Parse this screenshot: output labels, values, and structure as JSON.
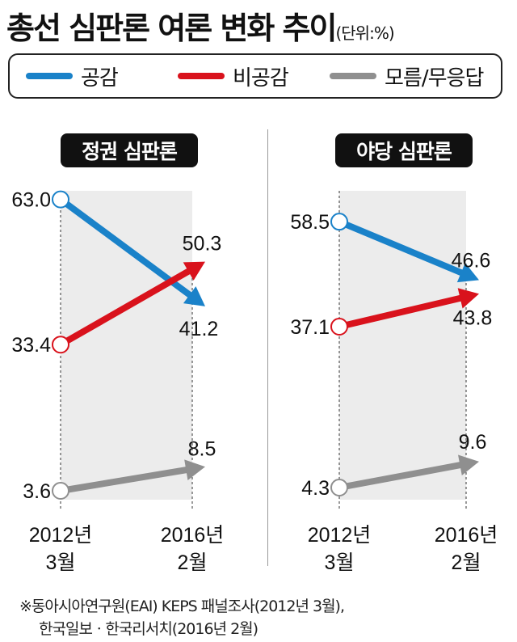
{
  "title": "총선 심판론 여론 변화 추이",
  "unit": "(단위:%)",
  "legend": [
    {
      "label": "공감",
      "color": "#1a82c9"
    },
    {
      "label": "비공감",
      "color": "#d9121c"
    },
    {
      "label": "모름/무응답",
      "color": "#8f8f8f"
    }
  ],
  "source_line1": "※동아시아연구원(EAI) KEPS 패널조사(2012년 3월),",
  "source_line2": "한국일보ㆍ한국리서치(2016년 2월)",
  "chart_data": [
    {
      "type": "line",
      "title": "정권 심판론",
      "x": [
        "2012년 3월",
        "2016년 2월"
      ],
      "series": [
        {
          "name": "공감",
          "values": [
            63.0,
            41.2
          ],
          "labels": [
            "63.0",
            "41.2"
          ]
        },
        {
          "name": "비공감",
          "values": [
            33.4,
            50.3
          ],
          "labels": [
            "33.4",
            "50.3"
          ]
        },
        {
          "name": "모름/무응답",
          "values": [
            3.6,
            8.5
          ],
          "labels": [
            "3.6",
            "8.5"
          ]
        }
      ]
    },
    {
      "type": "line",
      "title": "야당 심판론",
      "x": [
        "2012년 3월",
        "2016년 2월"
      ],
      "series": [
        {
          "name": "공감",
          "values": [
            58.5,
            46.6
          ],
          "labels": [
            "58.5",
            "46.6"
          ]
        },
        {
          "name": "비공감",
          "values": [
            37.1,
            43.8
          ],
          "labels": [
            "37.1",
            "43.8"
          ]
        },
        {
          "name": "모름/무응답",
          "values": [
            4.3,
            9.6
          ],
          "labels": [
            "4.3",
            "9.6"
          ]
        }
      ]
    }
  ]
}
